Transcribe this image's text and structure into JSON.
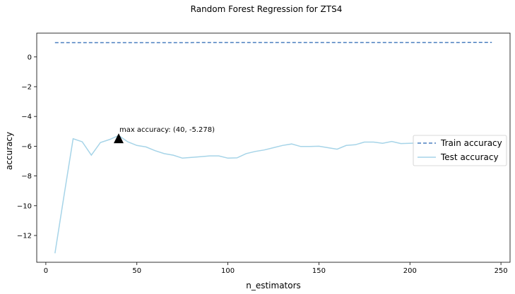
{
  "chart_data": {
    "type": "line",
    "title": "Random Forest Regression for ZTS4",
    "xlabel": "n_estimators",
    "ylabel": "accuracy",
    "xlim": [
      -5,
      255
    ],
    "ylim": [
      -13.8,
      1.6
    ],
    "xticks": [
      0,
      50,
      100,
      150,
      200,
      250
    ],
    "yticks": [
      0,
      -2,
      -4,
      -6,
      -8,
      -10,
      -12
    ],
    "xtick_labels": [
      "0",
      "50",
      "100",
      "150",
      "200",
      "250"
    ],
    "ytick_labels": [
      "0",
      "−2",
      "−4",
      "−6",
      "−8",
      "−10",
      "−12"
    ],
    "legend_position": "center-right",
    "series": [
      {
        "name": "Train accuracy",
        "style": "dashed",
        "color": "#4a7fbf",
        "x": [
          5,
          245
        ],
        "y": [
          0.96,
          0.97
        ]
      },
      {
        "name": "Test accuracy",
        "style": "solid",
        "color": "#a6d4e8",
        "x": [
          5,
          10,
          15,
          20,
          25,
          30,
          35,
          40,
          45,
          50,
          55,
          60,
          65,
          70,
          75,
          80,
          85,
          90,
          95,
          100,
          105,
          110,
          115,
          120,
          125,
          130,
          135,
          140,
          145,
          150,
          155,
          160,
          165,
          170,
          175,
          180,
          185,
          190,
          195,
          200,
          205
        ],
        "y": [
          -13.2,
          -9.3,
          -5.5,
          -5.7,
          -6.6,
          -5.75,
          -5.55,
          -5.28,
          -5.7,
          -5.95,
          -6.05,
          -6.3,
          -6.5,
          -6.6,
          -6.8,
          -6.75,
          -6.7,
          -6.65,
          -6.65,
          -6.8,
          -6.78,
          -6.5,
          -6.35,
          -6.25,
          -6.1,
          -5.95,
          -5.85,
          -6.02,
          -6.02,
          -6.0,
          -6.1,
          -6.2,
          -5.95,
          -5.9,
          -5.72,
          -5.72,
          -5.8,
          -5.68,
          -5.82,
          -5.8,
          -5.78
        ]
      }
    ],
    "annotation": {
      "text": "max accuracy: (40, -5.278)",
      "x": 40,
      "y": -5.278,
      "marker": "triangle-up"
    }
  }
}
